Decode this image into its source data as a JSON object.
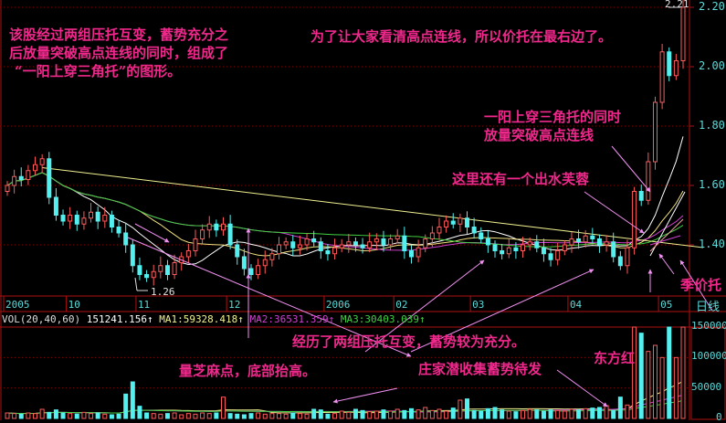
{
  "colors": {
    "up": "#ff5a5a",
    "down": "#54f0f0",
    "grid": "#8a0000",
    "border": "#b01010",
    "annotation": "#f0288c",
    "trend": "#f0f090",
    "ma1": "#ffffff",
    "ma2": "#f0e080",
    "ma3": "#d040d0",
    "ma4": "#40d040",
    "vma1": "#f0f090",
    "vma2": "#d040d0",
    "vma3": "#40d040"
  },
  "annotations": {
    "top_left": [
      "该股经过两组压托互变，蓄势充分之",
      "后放量突破高点连线的同时，组成了",
      "“一阳上穿三角托”的图形。"
    ],
    "top_right": "为了让大家看清高点连线，所以价托在最右边了。",
    "breakout": [
      "一阳上穿三角托的同时",
      "放量突破高点连线"
    ],
    "lotus": "这里还有一个出水芙蓉",
    "seasonal": "季价托",
    "two_groups": "经历了两组压托互变，蓄势较为充分。",
    "sesame": "量芝麻点，底部抬高。",
    "dealer": "庄家潜收集蓄势待发",
    "east_red": "东方红"
  },
  "price_labels": {
    "high": "2.21",
    "low": "1.26"
  },
  "period": "日线",
  "volume_legend": {
    "name": "VOL(20,40,60)",
    "value": "151241.156",
    "ma1": "MA1:59328.418",
    "ma2": "MA2:36531.359",
    "ma3": "MA3:30403.039",
    "arrow": "↑"
  },
  "chart_data": {
    "type": "bar",
    "subtype": "candlestick with volume",
    "yaxis_ticks": [
      "2.20",
      "2.00",
      "1.80",
      "1.60",
      "1.40"
    ],
    "ylim": [
      1.22,
      2.22
    ],
    "volume_ticks": [
      "150000",
      "100000",
      "50000",
      "0"
    ],
    "volume_ylim": [
      0,
      150000
    ],
    "date_ticks": [
      {
        "label": "2005",
        "index": 0
      },
      {
        "label": "10",
        "index": 9
      },
      {
        "label": "11",
        "index": 19
      },
      {
        "label": "12",
        "index": 32
      },
      {
        "label": "2006",
        "index": 46
      },
      {
        "label": "02",
        "index": 56
      },
      {
        "label": "03",
        "index": 67
      },
      {
        "label": "04",
        "index": 81
      },
      {
        "label": "05",
        "index": 94
      }
    ],
    "close": [
      1.6,
      1.63,
      1.62,
      1.65,
      1.67,
      1.69,
      1.56,
      1.5,
      1.48,
      1.5,
      1.47,
      1.49,
      1.51,
      1.48,
      1.5,
      1.46,
      1.44,
      1.4,
      1.33,
      1.3,
      1.29,
      1.31,
      1.33,
      1.3,
      1.34,
      1.36,
      1.38,
      1.42,
      1.45,
      1.47,
      1.45,
      1.47,
      1.4,
      1.36,
      1.32,
      1.3,
      1.33,
      1.35,
      1.37,
      1.4,
      1.41,
      1.39,
      1.4,
      1.42,
      1.41,
      1.38,
      1.37,
      1.39,
      1.4,
      1.41,
      1.4,
      1.39,
      1.41,
      1.42,
      1.4,
      1.42,
      1.43,
      1.38,
      1.36,
      1.39,
      1.42,
      1.44,
      1.46,
      1.48,
      1.47,
      1.49,
      1.46,
      1.44,
      1.42,
      1.4,
      1.38,
      1.37,
      1.39,
      1.38,
      1.4,
      1.41,
      1.39,
      1.37,
      1.35,
      1.38,
      1.4,
      1.42,
      1.41,
      1.43,
      1.42,
      1.4,
      1.41,
      1.36,
      1.33,
      1.39,
      1.58,
      1.55,
      1.68,
      1.88,
      2.05,
      1.97,
      2.02,
      2.2
    ],
    "volume": [
      9000,
      8000,
      7000,
      9000,
      8000,
      15000,
      10000,
      14000,
      9000,
      8000,
      7000,
      10000,
      8000,
      9000,
      7000,
      6000,
      7000,
      40000,
      60000,
      20000,
      9000,
      8000,
      7000,
      8000,
      9000,
      6000,
      8000,
      7000,
      9000,
      8000,
      9000,
      35000,
      8000,
      7000,
      6000,
      8000,
      9000,
      7000,
      8000,
      8000,
      7000,
      9000,
      8000,
      7000,
      15000,
      14000,
      7000,
      8000,
      12000,
      10000,
      15000,
      13000,
      11000,
      12000,
      14000,
      12000,
      15000,
      13000,
      16000,
      14000,
      18000,
      13000,
      15000,
      12000,
      17000,
      30000,
      32000,
      13000,
      12000,
      16000,
      18000,
      14000,
      12000,
      11000,
      13000,
      15000,
      14000,
      12000,
      14000,
      13000,
      12000,
      15000,
      14000,
      16000,
      17000,
      18000,
      21000,
      13000,
      35000,
      22000,
      150000,
      140000,
      110000,
      120000,
      100000,
      150000,
      100000,
      150000
    ],
    "trendline": {
      "from": [
        5,
        1.66
      ],
      "to": [
        97,
        1.4
      ]
    },
    "ma_periods": [
      10,
      20,
      40,
      60
    ]
  }
}
